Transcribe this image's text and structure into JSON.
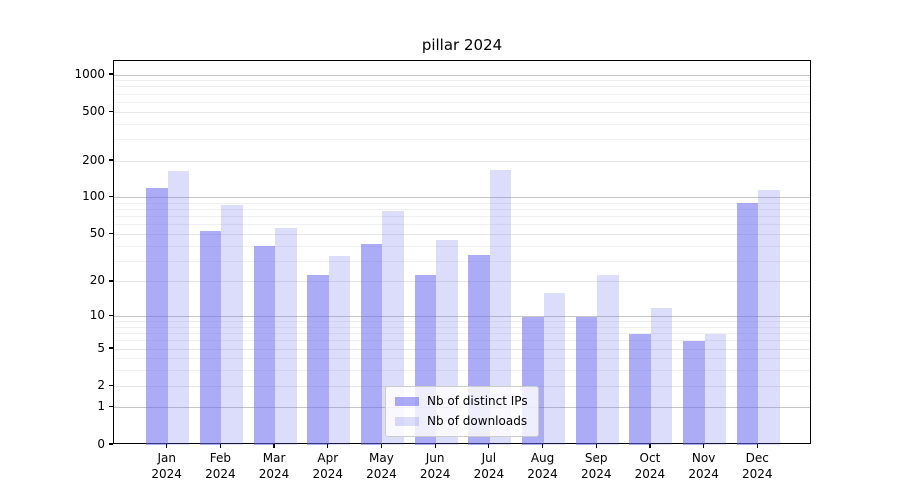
{
  "title": "pillar 2024",
  "chart_data": {
    "type": "bar",
    "categories": [
      "Jan",
      "Feb",
      "Mar",
      "Apr",
      "May",
      "Jun",
      "Jul",
      "Aug",
      "Sep",
      "Oct",
      "Nov",
      "Dec"
    ],
    "year": "2024",
    "series": [
      {
        "name": "Nb of distinct IPs",
        "color": "rgba(102,102,238,0.55)",
        "values": [
          120,
          53,
          40,
          23,
          42,
          23,
          34,
          10,
          10,
          7,
          6,
          90
        ]
      },
      {
        "name": "Nb of downloads",
        "color": "rgba(102,102,238,0.23)",
        "values": [
          165,
          87,
          56,
          33,
          78,
          45,
          170,
          16,
          23,
          12,
          7,
          115
        ]
      }
    ],
    "yscale": "log10(value+1)",
    "ylim": [
      0,
      1300
    ],
    "yticks": [
      0,
      1,
      2,
      5,
      10,
      20,
      50,
      100,
      200,
      500,
      1000
    ],
    "minor_yticks": [
      3,
      4,
      6,
      7,
      8,
      9,
      30,
      40,
      60,
      70,
      80,
      90,
      300,
      400,
      600,
      700,
      800,
      900
    ],
    "major_grid_values": [
      1,
      10,
      100,
      1000
    ],
    "grid": true,
    "legend_position": "lower center",
    "colors": {
      "grid_major": "#c6c6c6",
      "grid_tick": "#e7e7e7",
      "grid_minor": "#f0f0f0",
      "axis": "#000000",
      "background": "#ffffff"
    }
  }
}
